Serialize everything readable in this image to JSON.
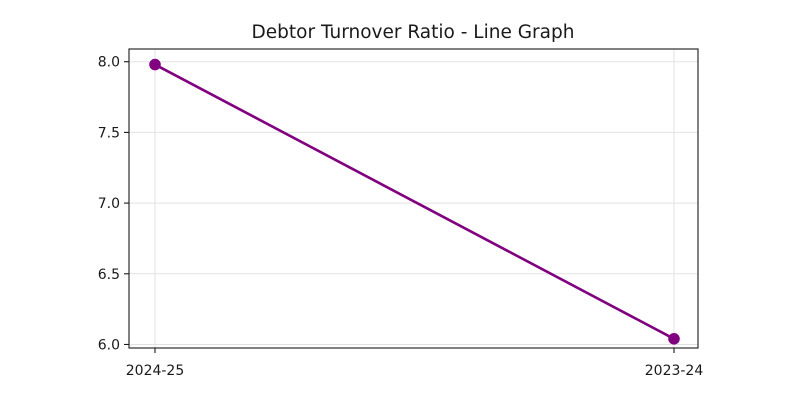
{
  "chart_data": {
    "type": "line",
    "title": "Debtor Turnover Ratio - Line Graph",
    "xlabel": "",
    "ylabel": "",
    "categories": [
      "2024-25",
      "2023-24"
    ],
    "series": [
      {
        "values": [
          7.98,
          6.04
        ],
        "color": "#800080",
        "marker": "circle"
      }
    ],
    "ylim": [
      5.975,
      8.09
    ],
    "yticks": [
      6.0,
      6.5,
      7.0,
      7.5,
      8.0
    ],
    "ytick_labels": [
      "6.0",
      "6.5",
      "7.0",
      "7.5",
      "8.0"
    ],
    "grid": true,
    "legend": "none"
  }
}
